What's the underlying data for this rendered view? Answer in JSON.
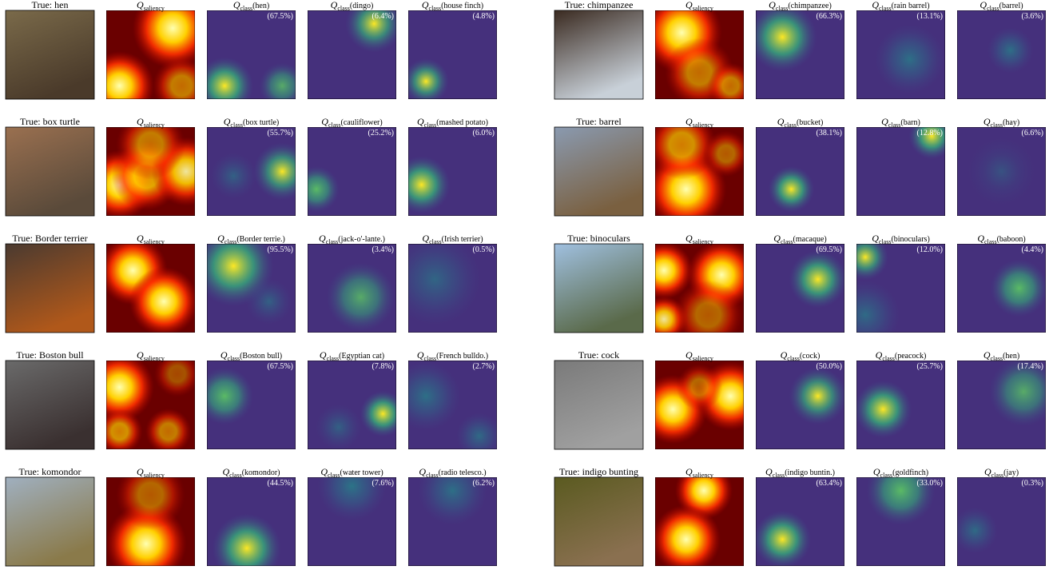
{
  "panels": [
    {
      "true_label": "True: hen",
      "saliency": {
        "symbol": "Q",
        "subscript": "saliency"
      },
      "classes": [
        {
          "symbol": "Q",
          "subscript": "class",
          "label": "(hen)",
          "prob": "(67.5%)"
        },
        {
          "symbol": "Q",
          "subscript": "class",
          "label": "(dingo)",
          "prob": "(6.4%)"
        },
        {
          "symbol": "Q",
          "subscript": "class",
          "label": "(house finch)",
          "prob": "(4.8%)"
        }
      ]
    },
    {
      "true_label": "True: box turtle",
      "saliency": {
        "symbol": "Q",
        "subscript": "saliency"
      },
      "classes": [
        {
          "symbol": "Q",
          "subscript": "class",
          "label": "(box turtle)",
          "prob": "(55.7%)"
        },
        {
          "symbol": "Q",
          "subscript": "class",
          "label": "(cauliflower)",
          "prob": "(25.2%)"
        },
        {
          "symbol": "Q",
          "subscript": "class",
          "label": "(mashed potato)",
          "prob": "(6.0%)"
        }
      ]
    },
    {
      "true_label": "True: Border terrier",
      "saliency": {
        "symbol": "Q",
        "subscript": "saliency"
      },
      "classes": [
        {
          "symbol": "Q",
          "subscript": "class",
          "label": "(Border terrie.)",
          "prob": "(95.5%)"
        },
        {
          "symbol": "Q",
          "subscript": "class",
          "label": "(jack-o'-lante.)",
          "prob": "(3.4%)"
        },
        {
          "symbol": "Q",
          "subscript": "class",
          "label": "(Irish terrier)",
          "prob": "(0.5%)"
        }
      ]
    },
    {
      "true_label": "True: Boston bull",
      "saliency": {
        "symbol": "Q",
        "subscript": "saliency"
      },
      "classes": [
        {
          "symbol": "Q",
          "subscript": "class",
          "label": "(Boston bull)",
          "prob": "(67.5%)"
        },
        {
          "symbol": "Q",
          "subscript": "class",
          "label": "(Egyptian cat)",
          "prob": "(7.8%)"
        },
        {
          "symbol": "Q",
          "subscript": "class",
          "label": "(French bulldo.)",
          "prob": "(2.7%)"
        }
      ]
    },
    {
      "true_label": "True: komondor",
      "saliency": {
        "symbol": "Q",
        "subscript": "saliency"
      },
      "classes": [
        {
          "symbol": "Q",
          "subscript": "class",
          "label": "(komondor)",
          "prob": "(44.5%)"
        },
        {
          "symbol": "Q",
          "subscript": "class",
          "label": "(water tower)",
          "prob": "(7.6%)"
        },
        {
          "symbol": "Q",
          "subscript": "class",
          "label": "(radio telesco.)",
          "prob": "(6.2%)"
        }
      ]
    },
    {
      "true_label": "True: chimpanzee",
      "saliency": {
        "symbol": "Q",
        "subscript": "saliency"
      },
      "classes": [
        {
          "symbol": "Q",
          "subscript": "class",
          "label": "(chimpanzee)",
          "prob": "(66.3%)"
        },
        {
          "symbol": "Q",
          "subscript": "class",
          "label": "(rain barrel)",
          "prob": "(13.1%)"
        },
        {
          "symbol": "Q",
          "subscript": "class",
          "label": "(barrel)",
          "prob": "(3.6%)"
        }
      ]
    },
    {
      "true_label": "True: barrel",
      "saliency": {
        "symbol": "Q",
        "subscript": "saliency"
      },
      "classes": [
        {
          "symbol": "Q",
          "subscript": "class",
          "label": "(bucket)",
          "prob": "(38.1%)"
        },
        {
          "symbol": "Q",
          "subscript": "class",
          "label": "(barn)",
          "prob": "(12.8%)"
        },
        {
          "symbol": "Q",
          "subscript": "class",
          "label": "(hay)",
          "prob": "(6.6%)"
        }
      ]
    },
    {
      "true_label": "True: binoculars",
      "saliency": {
        "symbol": "Q",
        "subscript": "saliency"
      },
      "classes": [
        {
          "symbol": "Q",
          "subscript": "class",
          "label": "(macaque)",
          "prob": "(69.5%)"
        },
        {
          "symbol": "Q",
          "subscript": "class",
          "label": "(binoculars)",
          "prob": "(12.0%)"
        },
        {
          "symbol": "Q",
          "subscript": "class",
          "label": "(baboon)",
          "prob": "(4.4%)"
        }
      ]
    },
    {
      "true_label": "True: cock",
      "saliency": {
        "symbol": "Q",
        "subscript": "saliency"
      },
      "classes": [
        {
          "symbol": "Q",
          "subscript": "class",
          "label": "(cock)",
          "prob": "(50.0%)"
        },
        {
          "symbol": "Q",
          "subscript": "class",
          "label": "(peacock)",
          "prob": "(25.7%)"
        },
        {
          "symbol": "Q",
          "subscript": "class",
          "label": "(hen)",
          "prob": "(17.4%)"
        }
      ]
    },
    {
      "true_label": "True: indigo bunting",
      "saliency": {
        "symbol": "Q",
        "subscript": "saliency"
      },
      "classes": [
        {
          "symbol": "Q",
          "subscript": "class",
          "label": "(indigo buntin.)",
          "prob": "(63.4%)"
        },
        {
          "symbol": "Q",
          "subscript": "class",
          "label": "(goldfinch)",
          "prob": "(33.0%)"
        },
        {
          "symbol": "Q",
          "subscript": "class",
          "label": "(jay)",
          "prob": "(0.3%)"
        }
      ]
    }
  ]
}
